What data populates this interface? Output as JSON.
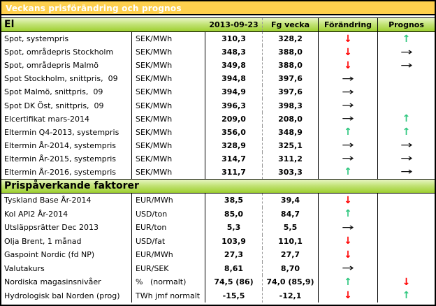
{
  "title": "Veckans prisförändring och prognos",
  "columns": {
    "date": "2013-09-23",
    "prev": "Fg vecka",
    "change": "Förändring",
    "forecast": "Prognos"
  },
  "arrows": {
    "up": "↑",
    "down": "↓",
    "flat": "→",
    "none": ""
  },
  "colors": {
    "accent_yellow": "#FFD04D",
    "header_green_light": "#E8F6C4",
    "header_green_dark": "#9DCF2F",
    "arrow_up": "#2FC77F",
    "arrow_down": "#FF0000",
    "arrow_flat": "#111111"
  },
  "sections": [
    {
      "name": "El",
      "rows": [
        {
          "label": "Spot, systempris",
          "unit": "SEK/MWh",
          "current": "310,3",
          "previous": "328,2",
          "change": "down",
          "forecast": "up"
        },
        {
          "label": "Spot, områdepris Stockholm",
          "unit": "SEK/MWh",
          "current": "348,3",
          "previous": "388,0",
          "change": "down",
          "forecast": "flat"
        },
        {
          "label": "Spot, områdepris Malmö",
          "unit": "SEK/MWh",
          "current": "349,8",
          "previous": "388,0",
          "change": "down",
          "forecast": "flat"
        },
        {
          "label": "Spot Stockholm, snittpris,  09",
          "unit": "SEK/MWh",
          "current": "394,8",
          "previous": "397,6",
          "change": "flat",
          "forecast": "none"
        },
        {
          "label": "Spot Malmö, snittpris,  09",
          "unit": "SEK/MWh",
          "current": "394,9",
          "previous": "397,6",
          "change": "flat",
          "forecast": "none"
        },
        {
          "label": "Spot DK Öst, snittpris,  09",
          "unit": "SEK/MWh",
          "current": "396,3",
          "previous": "398,3",
          "change": "flat",
          "forecast": "none"
        },
        {
          "label": "Elcertifikat mars-2014",
          "unit": "SEK/MWh",
          "current": "209,0",
          "previous": "208,0",
          "change": "flat",
          "forecast": "up"
        },
        {
          "label": "Eltermin Q4-2013, systempris",
          "unit": "SEK/MWh",
          "current": "356,0",
          "previous": "348,9",
          "change": "up",
          "forecast": "up"
        },
        {
          "label": "Eltermin År-2014, systempris",
          "unit": "SEK/MWh",
          "current": "328,9",
          "previous": "325,1",
          "change": "flat",
          "forecast": "flat"
        },
        {
          "label": "Eltermin År-2015, systempris",
          "unit": "SEK/MWh",
          "current": "314,7",
          "previous": "311,2",
          "change": "flat",
          "forecast": "flat"
        },
        {
          "label": "Eltermin År-2016, systempris",
          "unit": "SEK/MWh",
          "current": "311,7",
          "previous": "303,3",
          "change": "up",
          "forecast": "flat"
        }
      ]
    },
    {
      "name": "Prispåverkande faktorer",
      "rows": [
        {
          "label": "Tyskland Base År-2014",
          "unit": "EUR/MWh",
          "current": "38,5",
          "previous": "39,4",
          "change": "down",
          "forecast": "none"
        },
        {
          "label": "Kol API2 År-2014",
          "unit": "USD/ton",
          "current": "85,0",
          "previous": "84,7",
          "change": "up",
          "forecast": "none"
        },
        {
          "label": "Utsläppsrätter Dec 2013",
          "unit": "EUR/ton",
          "current": "5,3",
          "previous": "5,5",
          "change": "flat",
          "forecast": "none"
        },
        {
          "label": "Olja Brent, 1 månad",
          "unit": "USD/fat",
          "current": "103,9",
          "previous": "110,1",
          "change": "down",
          "forecast": "none"
        },
        {
          "label": "Gaspoint Nordic (fd NP)",
          "unit": "EUR/MWh",
          "current": "27,3",
          "previous": "27,7",
          "change": "down",
          "forecast": "none"
        },
        {
          "label": "Valutakurs",
          "unit": "EUR/SEK",
          "current": "8,61",
          "previous": "8,70",
          "change": "flat",
          "forecast": "none"
        },
        {
          "label": "Nordiska magasinsnivåer",
          "unit": "%   (normalt)",
          "current": "74,5 (86)",
          "previous": "74,0 (85,9)",
          "change": "up",
          "forecast": "down"
        },
        {
          "label": "Hydrologisk bal Norden (prog)",
          "unit": "TWh jmf normalt",
          "current": "-15,5",
          "previous": "-12,1",
          "change": "down",
          "forecast": "up"
        }
      ]
    }
  ]
}
